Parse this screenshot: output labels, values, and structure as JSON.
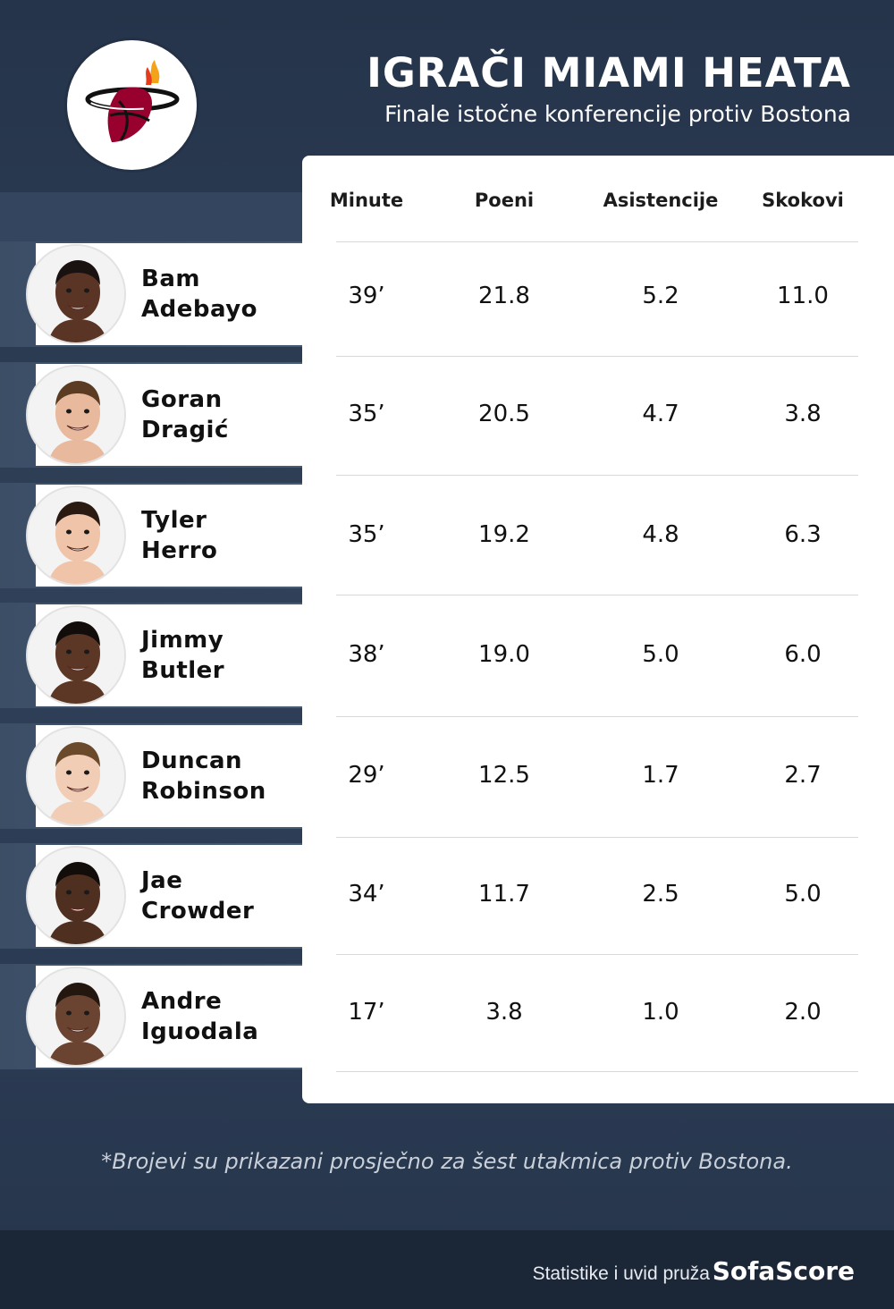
{
  "header": {
    "title": "IGRAČI MIAMI HEATA",
    "subtitle": "Finale istočne konferencije protiv Bostona",
    "logo_icon": "miami-heat-logo-icon"
  },
  "table": {
    "columns": [
      "Minute",
      "Poeni",
      "Asistencije",
      "Skokovi"
    ],
    "rows": [
      {
        "first": "Bam",
        "last": "Adebayo",
        "minutes": "39’",
        "points": "21.8",
        "assists": "5.2",
        "rebounds": "11.0",
        "skin": "#5a3525",
        "hair": "#1a1210"
      },
      {
        "first": "Goran",
        "last": "Dragić",
        "minutes": "35’",
        "points": "20.5",
        "assists": "4.7",
        "rebounds": "3.8",
        "skin": "#e8b99c",
        "hair": "#5b3b22"
      },
      {
        "first": "Tyler",
        "last": "Herro",
        "minutes": "35’",
        "points": "19.2",
        "assists": "4.8",
        "rebounds": "6.3",
        "skin": "#efc4a8",
        "hair": "#2a1a12"
      },
      {
        "first": "Jimmy",
        "last": "Butler",
        "minutes": "38’",
        "points": "19.0",
        "assists": "5.0",
        "rebounds": "6.0",
        "skin": "#5c3726",
        "hair": "#120c0a"
      },
      {
        "first": "Duncan",
        "last": "Robinson",
        "minutes": "29’",
        "points": "12.5",
        "assists": "1.7",
        "rebounds": "2.7",
        "skin": "#f2cdb6",
        "hair": "#6b4a2c"
      },
      {
        "first": "Jae",
        "last": "Crowder",
        "minutes": "34’",
        "points": "11.7",
        "assists": "2.5",
        "rebounds": "5.0",
        "skin": "#4e2f20",
        "hair": "#120c0a"
      },
      {
        "first": "Andre",
        "last": "Iguodala",
        "minutes": "17’",
        "points": "3.8",
        "assists": "1.0",
        "rebounds": "2.0",
        "skin": "#6a4430",
        "hair": "#241710"
      }
    ]
  },
  "footnote": "*Brojevi su prikazani prosječno za šest utakmica protiv Bostona.",
  "footer": {
    "text": "Statistike i uvid pruža",
    "brand": "SofaScore"
  }
}
